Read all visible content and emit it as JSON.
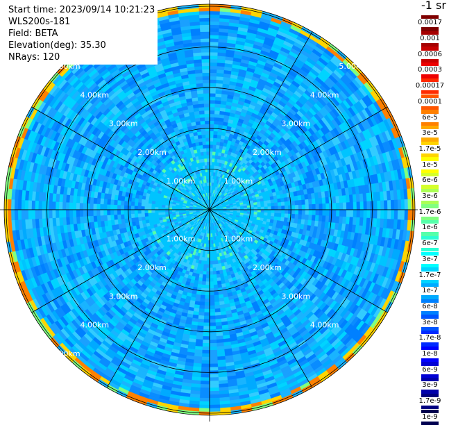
{
  "info": {
    "start_time": "Start time: 2023/09/14 10:21:23",
    "instrument": "WLS200s-181",
    "field": "Field: BETA",
    "elevation": "Elevation(deg): 35.30",
    "nrays": "NRays: 120"
  },
  "colorbar": {
    "title": "-1 sr",
    "entries": [
      {
        "label": "0.0017",
        "color": "#7f0000"
      },
      {
        "label": "0.001",
        "color": "#a50000"
      },
      {
        "label": "0.0006",
        "color": "#c80000"
      },
      {
        "label": "0.0003",
        "color": "#ee0000"
      },
      {
        "label": "0.00017",
        "color": "#ff2a00"
      },
      {
        "label": "0.0001",
        "color": "#ff5500"
      },
      {
        "label": "6e-5",
        "color": "#ff8000"
      },
      {
        "label": "3e-5",
        "color": "#ffaa00"
      },
      {
        "label": "1.7e-5",
        "color": "#ffd400"
      },
      {
        "label": "1e-5",
        "color": "#ffff00"
      },
      {
        "label": "6e-6",
        "color": "#d4ff2b"
      },
      {
        "label": "3e-6",
        "color": "#aaff55"
      },
      {
        "label": "1.7e-6",
        "color": "#80ff80"
      },
      {
        "label": "1e-6",
        "color": "#55ffaa"
      },
      {
        "label": "6e-7",
        "color": "#2bffd4"
      },
      {
        "label": "3e-7",
        "color": "#00ffff"
      },
      {
        "label": "1.7e-7",
        "color": "#00d4ff"
      },
      {
        "label": "1e-7",
        "color": "#00aaff"
      },
      {
        "label": "6e-8",
        "color": "#0080ff"
      },
      {
        "label": "3e-8",
        "color": "#0055ff"
      },
      {
        "label": "1.7e-8",
        "color": "#002aff"
      },
      {
        "label": "1e-8",
        "color": "#0000ff"
      },
      {
        "label": "6e-9",
        "color": "#0000d4"
      },
      {
        "label": "3e-9",
        "color": "#0000aa"
      },
      {
        "label": "1.7e-9",
        "color": "#000080"
      },
      {
        "label": "1e-9",
        "color": "#00004f"
      }
    ]
  },
  "range_rings": [
    "1.00km",
    "2.00km",
    "3.00km",
    "4.00km",
    "5.00km"
  ],
  "ring_values_km": [
    1,
    2,
    3,
    4,
    5
  ]
}
